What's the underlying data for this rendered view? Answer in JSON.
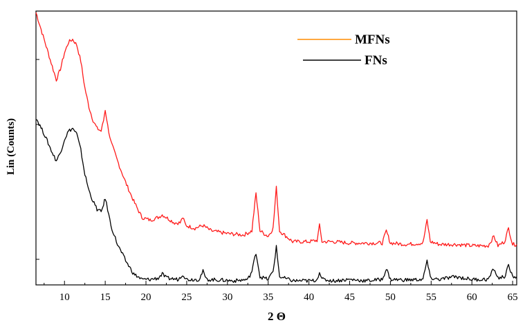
{
  "chart_data": {
    "type": "line",
    "title": "",
    "xlabel": "2 Θ",
    "ylabel": "Lin (Counts)",
    "xlim": [
      6.5,
      65.5
    ],
    "ylim": [
      0,
      100
    ],
    "xticks": [
      10,
      15,
      20,
      25,
      30,
      35,
      40,
      45,
      50,
      55,
      60,
      65
    ],
    "y_tick_labels_shown": false,
    "grid": false,
    "legend_position": "top-right",
    "series": [
      {
        "name": "MFNs",
        "color": "#ff1a1a",
        "legend_color": "#ff8c00",
        "points": [
          [
            6.5,
            100
          ],
          [
            7.5,
            90
          ],
          [
            8.5,
            80
          ],
          [
            9.0,
            75
          ],
          [
            9.5,
            79
          ],
          [
            10.0,
            85
          ],
          [
            10.5,
            89
          ],
          [
            11.0,
            90
          ],
          [
            11.5,
            88
          ],
          [
            12.0,
            82
          ],
          [
            12.5,
            72
          ],
          [
            13.0,
            65
          ],
          [
            13.5,
            60
          ],
          [
            14.0,
            57
          ],
          [
            14.5,
            56
          ],
          [
            14.8,
            60
          ],
          [
            15.0,
            64
          ],
          [
            15.3,
            58
          ],
          [
            15.7,
            52
          ],
          [
            16.5,
            45
          ],
          [
            17.5,
            37
          ],
          [
            18.5,
            30
          ],
          [
            19.5,
            24
          ],
          [
            20.5,
            23
          ],
          [
            21.5,
            24
          ],
          [
            22.0,
            25
          ],
          [
            22.5,
            24
          ],
          [
            23.5,
            22
          ],
          [
            24.2,
            22
          ],
          [
            24.5,
            24
          ],
          [
            24.9,
            21
          ],
          [
            26.0,
            20
          ],
          [
            27.0,
            21
          ],
          [
            28.0,
            19
          ],
          [
            30.0,
            18
          ],
          [
            32.0,
            17.5
          ],
          [
            33.0,
            19
          ],
          [
            33.5,
            33
          ],
          [
            34.0,
            19
          ],
          [
            35.0,
            17
          ],
          [
            35.6,
            20
          ],
          [
            36.0,
            35
          ],
          [
            36.4,
            19
          ],
          [
            38.0,
            15
          ],
          [
            40.0,
            15
          ],
          [
            41.0,
            15.5
          ],
          [
            41.3,
            21
          ],
          [
            41.6,
            15
          ],
          [
            43.0,
            15
          ],
          [
            45.0,
            14.5
          ],
          [
            47.0,
            14.5
          ],
          [
            49.0,
            14.5
          ],
          [
            49.5,
            19
          ],
          [
            50.0,
            14.5
          ],
          [
            52.0,
            14
          ],
          [
            54.0,
            14.5
          ],
          [
            54.5,
            23
          ],
          [
            54.9,
            15
          ],
          [
            56.0,
            14
          ],
          [
            58.0,
            14
          ],
          [
            60.0,
            13.5
          ],
          [
            62.0,
            13.5
          ],
          [
            62.7,
            17
          ],
          [
            63.2,
            13.5
          ],
          [
            64.0,
            15
          ],
          [
            64.5,
            20
          ],
          [
            65.0,
            14
          ],
          [
            65.5,
            14
          ]
        ]
      },
      {
        "name": "FNs",
        "color": "#000000",
        "legend_color": "#000000",
        "points": [
          [
            6.5,
            61
          ],
          [
            7.5,
            55
          ],
          [
            8.5,
            48
          ],
          [
            9.0,
            45
          ],
          [
            9.5,
            48
          ],
          [
            10.0,
            53
          ],
          [
            10.5,
            56
          ],
          [
            11.0,
            57
          ],
          [
            11.5,
            55
          ],
          [
            12.0,
            49
          ],
          [
            12.5,
            40
          ],
          [
            13.0,
            34
          ],
          [
            13.5,
            30
          ],
          [
            14.0,
            27
          ],
          [
            14.5,
            26
          ],
          [
            14.8,
            29
          ],
          [
            15.0,
            31
          ],
          [
            15.3,
            27
          ],
          [
            15.7,
            21
          ],
          [
            16.5,
            14
          ],
          [
            17.5,
            8
          ],
          [
            18.5,
            3
          ],
          [
            19.5,
            1
          ],
          [
            20.5,
            1
          ],
          [
            21.5,
            1.5
          ],
          [
            22.0,
            3
          ],
          [
            22.5,
            1.5
          ],
          [
            24.0,
            1
          ],
          [
            24.5,
            3
          ],
          [
            25.0,
            1
          ],
          [
            26.5,
            1
          ],
          [
            27.0,
            4
          ],
          [
            27.4,
            1
          ],
          [
            29.0,
            0.8
          ],
          [
            31.0,
            0.5
          ],
          [
            32.5,
            1
          ],
          [
            33.0,
            4
          ],
          [
            33.5,
            11
          ],
          [
            34.0,
            2
          ],
          [
            35.0,
            1
          ],
          [
            35.6,
            4
          ],
          [
            36.0,
            13
          ],
          [
            36.4,
            2
          ],
          [
            38.0,
            0.5
          ],
          [
            40.5,
            0.5
          ],
          [
            41.0,
            1
          ],
          [
            41.3,
            4
          ],
          [
            41.6,
            1
          ],
          [
            43.0,
            0.5
          ],
          [
            45.0,
            1
          ],
          [
            47.0,
            0.5
          ],
          [
            49.0,
            1
          ],
          [
            49.5,
            5
          ],
          [
            50.0,
            1
          ],
          [
            52.0,
            0.8
          ],
          [
            54.0,
            1
          ],
          [
            54.5,
            8
          ],
          [
            54.9,
            1.5
          ],
          [
            56.0,
            1
          ],
          [
            58.0,
            2
          ],
          [
            60.0,
            1
          ],
          [
            62.0,
            1
          ],
          [
            62.7,
            5
          ],
          [
            63.2,
            1.5
          ],
          [
            64.0,
            2
          ],
          [
            64.5,
            6
          ],
          [
            65.0,
            2
          ],
          [
            65.5,
            2
          ]
        ]
      }
    ]
  }
}
